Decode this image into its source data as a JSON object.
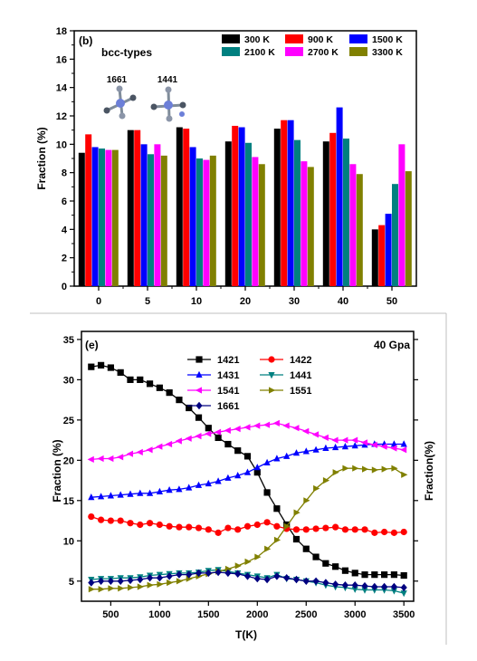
{
  "chart_data": [
    {
      "type": "bar",
      "panel_label": "(b)",
      "annotation": "bcc-types",
      "cluster_labels": [
        "1661",
        "1441"
      ],
      "categories": [
        "0",
        "5",
        "10",
        "20",
        "30",
        "40",
        "50"
      ],
      "xlabel": "",
      "ylabel": "Fraction (%)",
      "ylim": [
        0,
        18
      ],
      "yticks": [
        0,
        2,
        4,
        6,
        8,
        10,
        12,
        14,
        16,
        18
      ],
      "grid": false,
      "legend_position": "top-right",
      "series": [
        {
          "name": "300 K",
          "color": "#000000",
          "values": [
            9.4,
            11.0,
            11.2,
            10.2,
            11.1,
            10.2,
            4.0
          ]
        },
        {
          "name": "900 K",
          "color": "#ff0000",
          "values": [
            10.7,
            11.0,
            11.1,
            11.3,
            11.7,
            10.8,
            4.3
          ]
        },
        {
          "name": "1500 K",
          "color": "#0000ff",
          "values": [
            9.8,
            10.0,
            9.8,
            11.2,
            11.7,
            12.6,
            5.1
          ]
        },
        {
          "name": "2100 K",
          "color": "#008080",
          "values": [
            9.7,
            9.3,
            9.0,
            10.1,
            10.3,
            10.4,
            7.2
          ]
        },
        {
          "name": "2700 K",
          "color": "#ff00ff",
          "values": [
            9.6,
            10.0,
            8.9,
            9.1,
            8.8,
            8.6,
            10.0
          ]
        },
        {
          "name": "3300 K",
          "color": "#808000",
          "values": [
            9.6,
            9.2,
            9.2,
            8.6,
            8.4,
            7.9,
            8.1
          ]
        }
      ]
    },
    {
      "type": "line",
      "panel_label": "(e)",
      "annotation": "40 Gpa",
      "xlabel": "T(K)",
      "ylabel": "Fraction (%)",
      "ylabel_right": "Fraction(%)",
      "xlim": [
        200,
        3600
      ],
      "ylim": [
        2.5,
        36
      ],
      "xticks": [
        500,
        1000,
        1500,
        2000,
        2500,
        3000,
        3500
      ],
      "yticks": [
        5,
        10,
        15,
        20,
        25,
        30,
        35
      ],
      "grid": false,
      "legend_position": "top-center",
      "x": [
        300,
        400,
        500,
        600,
        700,
        800,
        900,
        1000,
        1100,
        1200,
        1300,
        1400,
        1500,
        1600,
        1700,
        1800,
        1900,
        2000,
        2100,
        2200,
        2300,
        2400,
        2500,
        2600,
        2700,
        2800,
        2900,
        3000,
        3100,
        3200,
        3300,
        3400,
        3500
      ],
      "series": [
        {
          "name": "1421",
          "color": "#000000",
          "marker": "square",
          "values": [
            31.6,
            31.8,
            31.5,
            30.9,
            30.0,
            30.0,
            29.5,
            29.0,
            28.4,
            27.5,
            26.5,
            25.3,
            24.0,
            22.8,
            22.0,
            21.2,
            20.5,
            18.5,
            16.0,
            14.0,
            12.0,
            10.2,
            9.0,
            8.0,
            7.2,
            6.8,
            6.3,
            6.0,
            5.8,
            5.8,
            5.8,
            5.8,
            5.7
          ]
        },
        {
          "name": "1422",
          "color": "#ff0000",
          "marker": "circle",
          "values": [
            13.0,
            12.6,
            12.5,
            12.5,
            12.2,
            12.0,
            12.2,
            12.0,
            11.8,
            11.7,
            11.7,
            11.6,
            11.4,
            11.0,
            11.6,
            11.4,
            11.8,
            12.0,
            12.3,
            11.8,
            11.5,
            11.4,
            11.4,
            11.5,
            11.6,
            11.7,
            11.4,
            11.4,
            11.4,
            11.0,
            11.1,
            11.0,
            11.1
          ]
        },
        {
          "name": "1431",
          "color": "#0000ff",
          "marker": "triangle-up",
          "values": [
            15.4,
            15.5,
            15.6,
            15.7,
            15.8,
            15.9,
            15.9,
            16.1,
            16.3,
            16.4,
            16.6,
            16.9,
            17.1,
            17.4,
            17.8,
            18.1,
            18.5,
            19.1,
            19.7,
            20.2,
            20.5,
            20.9,
            21.1,
            21.3,
            21.5,
            21.6,
            21.7,
            21.8,
            21.9,
            22.0,
            22.0,
            22.0,
            22.0
          ]
        },
        {
          "name": "1441",
          "color": "#008080",
          "marker": "triangle-down",
          "values": [
            5.2,
            5.3,
            5.3,
            5.4,
            5.4,
            5.5,
            5.7,
            5.8,
            5.9,
            6.0,
            6.0,
            6.1,
            6.3,
            6.4,
            6.2,
            6.0,
            5.8,
            5.6,
            5.4,
            5.8,
            5.3,
            5.2,
            5.0,
            4.8,
            4.5,
            4.3,
            4.2,
            4.0,
            3.9,
            3.9,
            3.9,
            3.8,
            3.5
          ]
        },
        {
          "name": "1541",
          "color": "#ff00ff",
          "marker": "triangle-left",
          "values": [
            20.1,
            20.2,
            20.2,
            20.4,
            20.8,
            21.0,
            21.3,
            21.7,
            22.0,
            22.4,
            22.7,
            23.0,
            23.3,
            23.5,
            23.7,
            23.9,
            24.1,
            24.3,
            24.4,
            24.6,
            24.3,
            24.0,
            23.6,
            23.2,
            22.8,
            22.5,
            22.5,
            22.5,
            22.2,
            21.9,
            21.7,
            21.5,
            21.3
          ]
        },
        {
          "name": "1551",
          "color": "#808000",
          "marker": "triangle-right",
          "values": [
            4.0,
            4.0,
            4.1,
            4.1,
            4.2,
            4.3,
            4.5,
            4.6,
            4.8,
            5.0,
            5.3,
            5.6,
            5.9,
            6.2,
            6.5,
            6.9,
            7.4,
            8.0,
            9.0,
            10.1,
            11.8,
            13.5,
            15.0,
            16.5,
            17.5,
            18.5,
            19.0,
            19.0,
            18.9,
            18.8,
            18.9,
            19.0,
            18.2
          ]
        },
        {
          "name": "1661",
          "color": "#000080",
          "marker": "diamond",
          "values": [
            4.8,
            5.0,
            5.0,
            5.0,
            5.1,
            5.2,
            5.4,
            5.4,
            5.6,
            5.8,
            5.8,
            6.0,
            6.0,
            6.1,
            6.0,
            5.9,
            5.6,
            5.3,
            5.2,
            5.6,
            5.4,
            5.2,
            5.0,
            5.0,
            4.8,
            4.6,
            4.5,
            4.5,
            4.4,
            4.3,
            4.3,
            4.3,
            4.2
          ]
        }
      ]
    }
  ]
}
